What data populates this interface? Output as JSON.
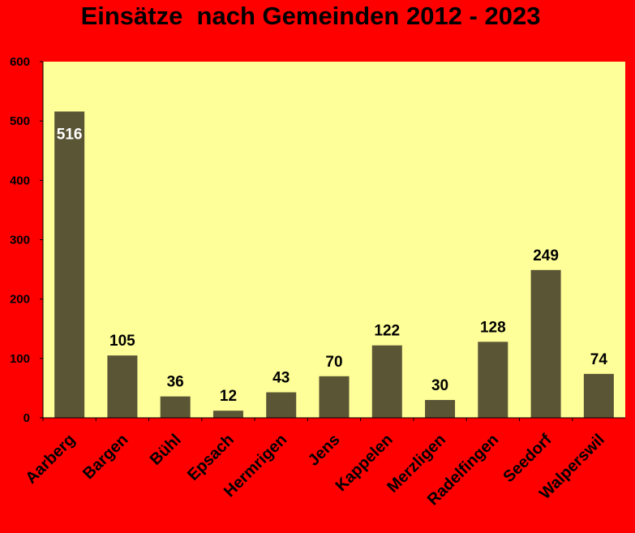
{
  "colors": {
    "background": "#ff0000",
    "plot_area": "#ffff99",
    "bar": "#5a5535",
    "text": "#000000",
    "inside_label": "#ffffff"
  },
  "chart_data": {
    "type": "bar",
    "title": "Einsätze  nach Gemeinden 2012 - 2023",
    "xlabel": "",
    "ylabel": "",
    "categories": [
      "Aarberg",
      "Bargen",
      "Bühl",
      "Epsach",
      "Hermrigen",
      "Jens",
      "Kappelen",
      "Merzligen",
      "Radelfingen",
      "Seedorf",
      "Walperswil"
    ],
    "values": [
      516,
      105,
      36,
      12,
      43,
      70,
      122,
      30,
      128,
      249,
      74
    ],
    "ylim": [
      0,
      600
    ],
    "yticks": [
      0,
      100,
      200,
      300,
      400,
      500,
      600
    ],
    "grid": false,
    "legend": "none"
  }
}
